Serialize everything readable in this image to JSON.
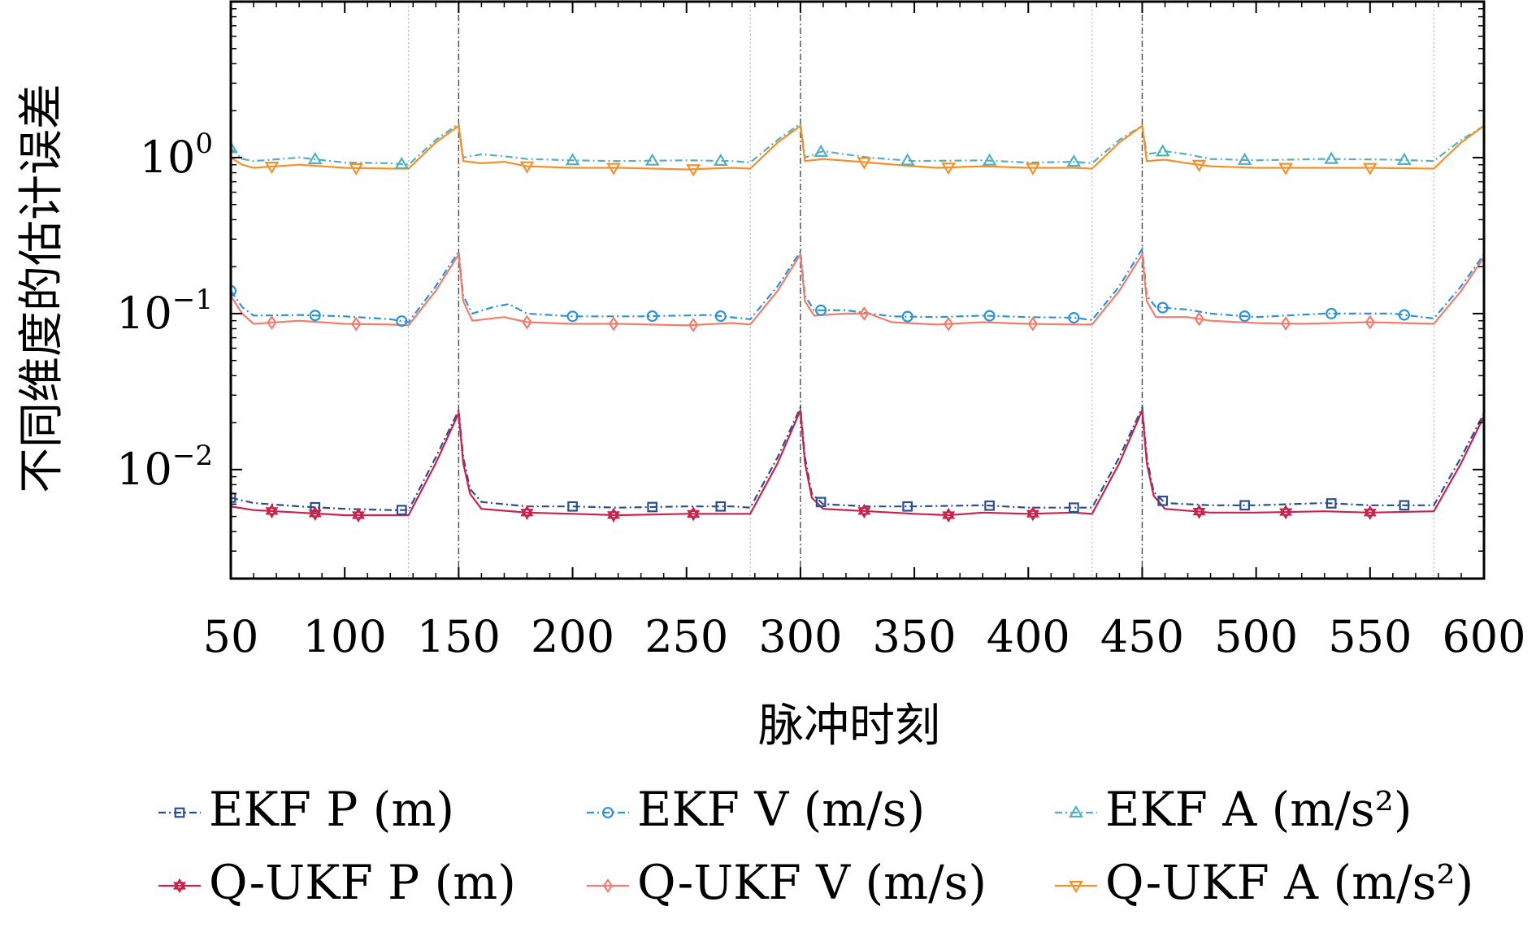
{
  "chart_data": {
    "type": "line",
    "xlabel": "脉冲时刻",
    "ylabel": "不同维度的估计误差",
    "xlim": [
      50,
      600
    ],
    "ylim": [
      0.002,
      10
    ],
    "yscale": "log",
    "xticks": [
      50,
      100,
      150,
      200,
      250,
      300,
      350,
      400,
      450,
      500,
      550,
      600
    ],
    "yticks": [
      {
        "value": 0.01,
        "base": "10",
        "exp": "−2"
      },
      {
        "value": 0.1,
        "base": "10",
        "exp": "−1"
      },
      {
        "value": 1,
        "base": "10",
        "exp": "0"
      }
    ],
    "legend_position": "bottom",
    "grid": false,
    "segment_boundaries": [
      150,
      300,
      450
    ],
    "dotted_markers": [
      128,
      278,
      428,
      578
    ],
    "series": [
      {
        "name": "EKF P (m)",
        "color": "#2c4f8f",
        "style": "dashdot",
        "marker": "square",
        "points": [
          [
            50,
            0.0066
          ],
          [
            60,
            0.0061
          ],
          [
            80,
            0.0058
          ],
          [
            100,
            0.0056
          ],
          [
            120,
            0.0055
          ],
          [
            128,
            0.0055
          ],
          [
            140,
            0.012
          ],
          [
            150,
            0.024
          ],
          [
            152,
            0.012
          ],
          [
            155,
            0.0075
          ],
          [
            160,
            0.0062
          ],
          [
            180,
            0.0058
          ],
          [
            200,
            0.0058
          ],
          [
            220,
            0.0057
          ],
          [
            250,
            0.0058
          ],
          [
            270,
            0.0058
          ],
          [
            278,
            0.0057
          ],
          [
            290,
            0.012
          ],
          [
            300,
            0.025
          ],
          [
            302,
            0.012
          ],
          [
            305,
            0.007
          ],
          [
            310,
            0.006
          ],
          [
            330,
            0.0058
          ],
          [
            350,
            0.0058
          ],
          [
            380,
            0.0059
          ],
          [
            400,
            0.0057
          ],
          [
            420,
            0.0057
          ],
          [
            428,
            0.0057
          ],
          [
            440,
            0.012
          ],
          [
            450,
            0.025
          ],
          [
            452,
            0.012
          ],
          [
            455,
            0.0072
          ],
          [
            460,
            0.0061
          ],
          [
            480,
            0.0059
          ],
          [
            500,
            0.0059
          ],
          [
            530,
            0.0061
          ],
          [
            550,
            0.0059
          ],
          [
            578,
            0.0059
          ],
          [
            590,
            0.012
          ],
          [
            600,
            0.023
          ]
        ]
      },
      {
        "name": "Q-UKF P (m)",
        "color": "#c8234b",
        "style": "solid",
        "marker": "star",
        "points": [
          [
            50,
            0.0058
          ],
          [
            60,
            0.0055
          ],
          [
            80,
            0.0053
          ],
          [
            100,
            0.0051
          ],
          [
            120,
            0.0051
          ],
          [
            128,
            0.0051
          ],
          [
            140,
            0.011
          ],
          [
            150,
            0.023
          ],
          [
            152,
            0.011
          ],
          [
            155,
            0.007
          ],
          [
            160,
            0.0056
          ],
          [
            180,
            0.0053
          ],
          [
            200,
            0.0052
          ],
          [
            220,
            0.0051
          ],
          [
            250,
            0.0052
          ],
          [
            270,
            0.0052
          ],
          [
            278,
            0.0052
          ],
          [
            290,
            0.011
          ],
          [
            300,
            0.024
          ],
          [
            302,
            0.011
          ],
          [
            305,
            0.0066
          ],
          [
            310,
            0.0056
          ],
          [
            330,
            0.0054
          ],
          [
            350,
            0.0052
          ],
          [
            365,
            0.0051
          ],
          [
            380,
            0.0053
          ],
          [
            400,
            0.0052
          ],
          [
            420,
            0.0053
          ],
          [
            428,
            0.0052
          ],
          [
            440,
            0.011
          ],
          [
            450,
            0.024
          ],
          [
            452,
            0.011
          ],
          [
            455,
            0.0068
          ],
          [
            460,
            0.0056
          ],
          [
            480,
            0.0053
          ],
          [
            500,
            0.0053
          ],
          [
            530,
            0.0054
          ],
          [
            550,
            0.0053
          ],
          [
            578,
            0.0054
          ],
          [
            590,
            0.011
          ],
          [
            600,
            0.022
          ]
        ]
      },
      {
        "name": "EKF V (m/s)",
        "color": "#2e93d4",
        "style": "dashdot",
        "marker": "circle",
        "points": [
          [
            50,
            0.14
          ],
          [
            55,
            0.11
          ],
          [
            60,
            0.097
          ],
          [
            80,
            0.098
          ],
          [
            100,
            0.096
          ],
          [
            120,
            0.092
          ],
          [
            128,
            0.088
          ],
          [
            140,
            0.15
          ],
          [
            150,
            0.25
          ],
          [
            152,
            0.13
          ],
          [
            156,
            0.1
          ],
          [
            165,
            0.11
          ],
          [
            172,
            0.115
          ],
          [
            180,
            0.1
          ],
          [
            200,
            0.096
          ],
          [
            230,
            0.096
          ],
          [
            260,
            0.098
          ],
          [
            278,
            0.092
          ],
          [
            290,
            0.15
          ],
          [
            300,
            0.25
          ],
          [
            302,
            0.13
          ],
          [
            306,
            0.105
          ],
          [
            320,
            0.105
          ],
          [
            340,
            0.096
          ],
          [
            360,
            0.095
          ],
          [
            380,
            0.097
          ],
          [
            400,
            0.095
          ],
          [
            420,
            0.094
          ],
          [
            428,
            0.091
          ],
          [
            440,
            0.15
          ],
          [
            450,
            0.26
          ],
          [
            452,
            0.13
          ],
          [
            456,
            0.11
          ],
          [
            470,
            0.106
          ],
          [
            480,
            0.1
          ],
          [
            500,
            0.095
          ],
          [
            530,
            0.1
          ],
          [
            560,
            0.1
          ],
          [
            578,
            0.093
          ],
          [
            590,
            0.15
          ],
          [
            600,
            0.24
          ]
        ]
      },
      {
        "name": "Q-UKF V (m/s)",
        "color": "#f07e6e",
        "style": "solid",
        "marker": "diamond",
        "points": [
          [
            50,
            0.13
          ],
          [
            55,
            0.1
          ],
          [
            60,
            0.086
          ],
          [
            80,
            0.09
          ],
          [
            100,
            0.086
          ],
          [
            120,
            0.085
          ],
          [
            128,
            0.084
          ],
          [
            140,
            0.14
          ],
          [
            150,
            0.24
          ],
          [
            152,
            0.12
          ],
          [
            156,
            0.09
          ],
          [
            170,
            0.095
          ],
          [
            180,
            0.088
          ],
          [
            200,
            0.086
          ],
          [
            220,
            0.086
          ],
          [
            250,
            0.084
          ],
          [
            270,
            0.087
          ],
          [
            278,
            0.085
          ],
          [
            290,
            0.14
          ],
          [
            300,
            0.24
          ],
          [
            302,
            0.12
          ],
          [
            306,
            0.097
          ],
          [
            320,
            0.1
          ],
          [
            330,
            0.1
          ],
          [
            340,
            0.088
          ],
          [
            360,
            0.085
          ],
          [
            380,
            0.088
          ],
          [
            400,
            0.086
          ],
          [
            420,
            0.085
          ],
          [
            428,
            0.085
          ],
          [
            440,
            0.14
          ],
          [
            450,
            0.24
          ],
          [
            452,
            0.12
          ],
          [
            456,
            0.095
          ],
          [
            470,
            0.095
          ],
          [
            480,
            0.09
          ],
          [
            500,
            0.087
          ],
          [
            520,
            0.086
          ],
          [
            550,
            0.088
          ],
          [
            578,
            0.086
          ],
          [
            590,
            0.14
          ],
          [
            600,
            0.23
          ]
        ]
      },
      {
        "name": "EKF A (m/s²)",
        "color": "#52b0c0",
        "style": "dashdot",
        "marker": "triangle-up",
        "points": [
          [
            50,
            1.15
          ],
          [
            55,
            0.98
          ],
          [
            60,
            0.95
          ],
          [
            80,
            1.0
          ],
          [
            100,
            0.93
          ],
          [
            120,
            0.92
          ],
          [
            128,
            0.9
          ],
          [
            140,
            1.3
          ],
          [
            150,
            1.65
          ],
          [
            152,
            1.0
          ],
          [
            160,
            1.05
          ],
          [
            170,
            1.02
          ],
          [
            180,
            0.98
          ],
          [
            200,
            0.96
          ],
          [
            220,
            0.95
          ],
          [
            250,
            0.96
          ],
          [
            270,
            0.95
          ],
          [
            278,
            0.93
          ],
          [
            290,
            1.3
          ],
          [
            300,
            1.65
          ],
          [
            302,
            1.0
          ],
          [
            310,
            1.1
          ],
          [
            330,
            1.0
          ],
          [
            350,
            0.95
          ],
          [
            380,
            0.96
          ],
          [
            400,
            0.93
          ],
          [
            420,
            0.94
          ],
          [
            428,
            0.92
          ],
          [
            440,
            1.3
          ],
          [
            450,
            1.6
          ],
          [
            452,
            1.05
          ],
          [
            460,
            1.1
          ],
          [
            470,
            1.05
          ],
          [
            480,
            0.98
          ],
          [
            500,
            0.96
          ],
          [
            530,
            0.98
          ],
          [
            560,
            0.97
          ],
          [
            578,
            0.95
          ],
          [
            590,
            1.3
          ],
          [
            600,
            1.6
          ]
        ]
      },
      {
        "name": "Q-UKF A (m/s²)",
        "color": "#f5902a",
        "style": "solid",
        "marker": "triangle-down",
        "points": [
          [
            50,
            1.0
          ],
          [
            55,
            0.9
          ],
          [
            60,
            0.86
          ],
          [
            80,
            0.9
          ],
          [
            100,
            0.86
          ],
          [
            120,
            0.85
          ],
          [
            128,
            0.85
          ],
          [
            140,
            1.25
          ],
          [
            150,
            1.6
          ],
          [
            152,
            0.95
          ],
          [
            160,
            0.92
          ],
          [
            170,
            0.94
          ],
          [
            180,
            0.88
          ],
          [
            200,
            0.86
          ],
          [
            220,
            0.86
          ],
          [
            250,
            0.84
          ],
          [
            270,
            0.86
          ],
          [
            278,
            0.85
          ],
          [
            290,
            1.25
          ],
          [
            300,
            1.6
          ],
          [
            302,
            0.95
          ],
          [
            310,
            0.98
          ],
          [
            330,
            0.93
          ],
          [
            350,
            0.88
          ],
          [
            360,
            0.86
          ],
          [
            380,
            0.88
          ],
          [
            400,
            0.86
          ],
          [
            420,
            0.86
          ],
          [
            428,
            0.85
          ],
          [
            440,
            1.25
          ],
          [
            450,
            1.6
          ],
          [
            452,
            0.95
          ],
          [
            460,
            0.97
          ],
          [
            470,
            0.92
          ],
          [
            480,
            0.88
          ],
          [
            500,
            0.86
          ],
          [
            520,
            0.86
          ],
          [
            550,
            0.86
          ],
          [
            578,
            0.85
          ],
          [
            590,
            1.25
          ],
          [
            600,
            1.6
          ]
        ]
      }
    ],
    "markers": [
      {
        "series": 0,
        "x": [
          50,
          87,
          125,
          200,
          235,
          265,
          309,
          347,
          383,
          420,
          459,
          495,
          533,
          565
        ]
      },
      {
        "series": 1,
        "x": [
          68,
          87,
          106,
          180,
          218,
          253,
          328,
          365,
          402,
          475,
          513,
          550
        ]
      },
      {
        "series": 2,
        "x": [
          50,
          87,
          125,
          200,
          235,
          265,
          309,
          347,
          383,
          420,
          459,
          495,
          533,
          565
        ]
      },
      {
        "series": 3,
        "x": [
          68,
          105,
          180,
          218,
          253,
          328,
          365,
          402,
          475,
          513,
          550
        ]
      },
      {
        "series": 4,
        "x": [
          50,
          87,
          125,
          200,
          235,
          265,
          309,
          347,
          383,
          420,
          459,
          495,
          533,
          565
        ]
      },
      {
        "series": 5,
        "x": [
          68,
          105,
          180,
          218,
          253,
          328,
          365,
          402,
          475,
          513,
          550
        ]
      }
    ]
  }
}
